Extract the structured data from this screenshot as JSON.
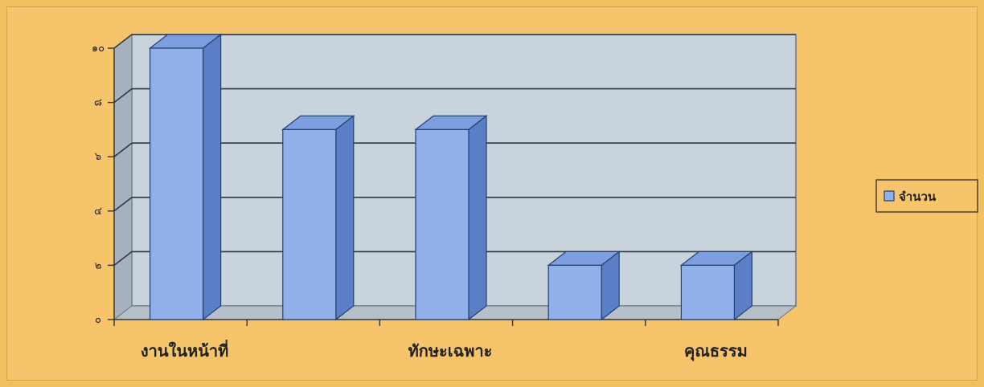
{
  "chart_data": {
    "type": "bar",
    "title": "",
    "xlabel": "",
    "ylabel": "",
    "categories": [
      "งานในหน้าที่",
      "",
      "ทักษะเฉพาะ",
      "",
      "คุณธรรม"
    ],
    "series": [
      {
        "name": "จำนวน",
        "values": [
          10,
          7,
          7,
          2,
          2
        ]
      }
    ],
    "ytick_labels": [
      "๐",
      "๒",
      "๔",
      "๖",
      "๘",
      "๑๐"
    ],
    "ylim": [
      0,
      10
    ],
    "ytick_step": 2,
    "grid": true,
    "legend_position": "right",
    "colors": {
      "bar_front": "#8fb0e8",
      "bar_side": "#5b7fc7",
      "bar_top": "#7d9fe0",
      "plot_back": "#c8d3dc",
      "plot_wall": "#a7b1bd",
      "floor": "#b7c0c9",
      "background": "#f6c46b"
    }
  }
}
